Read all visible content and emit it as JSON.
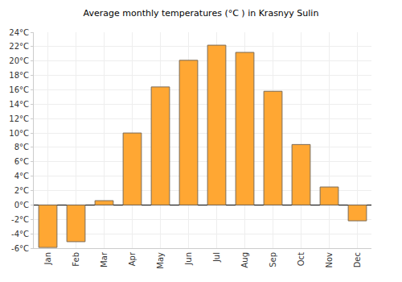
{
  "chart_data": {
    "type": "bar",
    "title": "Average monthly temperatures (°C ) in Krasnyy Sulin",
    "categories": [
      "Jan",
      "Feb",
      "Mar",
      "Apr",
      "May",
      "Jun",
      "Jul",
      "Aug",
      "Sep",
      "Oct",
      "Nov",
      "Dec"
    ],
    "values": [
      -5.9,
      -5.1,
      0.6,
      10.0,
      16.4,
      20.1,
      22.2,
      21.2,
      15.8,
      8.4,
      2.5,
      -2.2
    ],
    "color": "#ffa733",
    "ylim": [
      -6,
      24
    ],
    "yticks": [
      {
        "value": -6,
        "label": "-6°C"
      },
      {
        "value": -4,
        "label": "-4°C"
      },
      {
        "value": -2,
        "label": "-2°C"
      },
      {
        "value": 0,
        "label": "0°C"
      },
      {
        "value": 2,
        "label": "2°C"
      },
      {
        "value": 4,
        "label": "4°C"
      },
      {
        "value": 6,
        "label": "6°C"
      },
      {
        "value": 8,
        "label": "8°C"
      },
      {
        "value": 10,
        "label": "10°C"
      },
      {
        "value": 12,
        "label": "12°C"
      },
      {
        "value": 14,
        "label": "14°C"
      },
      {
        "value": 16,
        "label": "16°C"
      },
      {
        "value": 18,
        "label": "18°C"
      },
      {
        "value": 20,
        "label": "20°C"
      },
      {
        "value": 22,
        "label": "22°C"
      },
      {
        "value": 24,
        "label": "24°C"
      }
    ],
    "grid": true
  }
}
